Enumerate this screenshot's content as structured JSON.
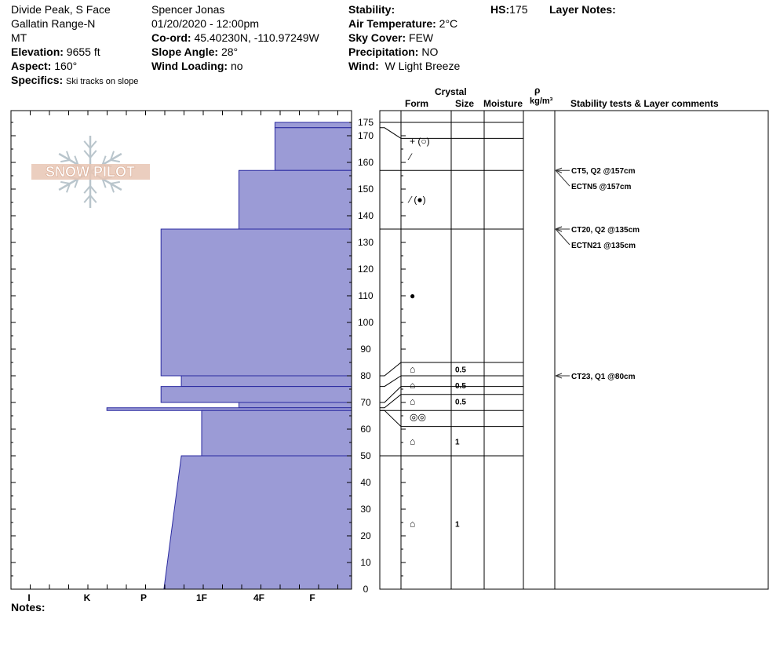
{
  "header": {
    "location": "Divide Peak, S Face",
    "range": "Gallatin Range-N",
    "state": "MT",
    "elevation_label": "Elevation:",
    "elevation_value": "9655 ft",
    "aspect_label": "Aspect:",
    "aspect_value": "160°",
    "specifics_label": "Specifics:",
    "specifics_value": "Ski tracks on slope",
    "observer": "Spencer Jonas",
    "datetime": "01/20/2020 - 12:00pm",
    "coord_label": "Co-ord:",
    "coord_value": "45.40230N, -110.97249W",
    "slope_label": "Slope Angle:",
    "slope_value": "28°",
    "wind_loading_label": "Wind Loading:",
    "wind_loading_value": "no",
    "stability_label": "Stability:",
    "air_temp_label": "Air Temperature:",
    "air_temp_value": "2°C",
    "sky_label": "Sky Cover:",
    "sky_value": "FEW",
    "precip_label": "Precipitation:",
    "precip_value": "NO",
    "wind_label": "Wind:",
    "wind_value": "W Light Breeze",
    "hs_label": "HS:",
    "hs_value": "175",
    "layer_notes_label": "Layer Notes:"
  },
  "logo": {
    "text": "SNOW PILOT"
  },
  "columns": {
    "crystal": "Crystal",
    "form": "Form",
    "size": "Size",
    "moisture": "Moisture",
    "rho": "ρ",
    "density_unit": "kg/m³",
    "stability": "Stability tests & Layer comments"
  },
  "notes_label": "Notes:",
  "chart_data": {
    "type": "bar",
    "title": "",
    "ylabel": "",
    "ylim": [
      0,
      180
    ],
    "hardness_scale": [
      "I",
      "K",
      "P",
      "1F",
      "4F",
      "F"
    ],
    "y_ticks": [
      0,
      10,
      20,
      30,
      40,
      50,
      60,
      70,
      80,
      90,
      100,
      110,
      120,
      130,
      140,
      150,
      160,
      170,
      175
    ],
    "hardness_layers": [
      {
        "bottom": 173,
        "top": 175,
        "hardness_top": 0.7,
        "hardness_bottom": 0.7
      },
      {
        "bottom": 157,
        "top": 173,
        "hardness_top": 0.7,
        "hardness_bottom": 0.7
      },
      {
        "bottom": 135,
        "top": 157,
        "hardness_top": 1.35,
        "hardness_bottom": 1.35
      },
      {
        "bottom": 80,
        "top": 135,
        "hardness_top": 2.7,
        "hardness_bottom": 2.7
      },
      {
        "bottom": 76,
        "top": 80,
        "hardness_top": 2.35,
        "hardness_bottom": 2.35
      },
      {
        "bottom": 70,
        "top": 76,
        "hardness_top": 2.7,
        "hardness_bottom": 2.7
      },
      {
        "bottom": 68,
        "top": 70,
        "hardness_top": 1.35,
        "hardness_bottom": 1.35
      },
      {
        "bottom": 67,
        "top": 68,
        "hardness_top": 3.65,
        "hardness_bottom": 3.65
      },
      {
        "bottom": 50,
        "top": 67,
        "hardness_top": 2.0,
        "hardness_bottom": 2.0
      },
      {
        "bottom": 0,
        "top": 50,
        "hardness_top": 2.35,
        "hardness_bottom": 2.65
      }
    ],
    "layer_boundaries": [
      175,
      169,
      157,
      135,
      85,
      80,
      76,
      73,
      67,
      61,
      50
    ],
    "layers": [
      {
        "label_y": 168,
        "form": "+ (○)",
        "size": ""
      },
      {
        "label_y": 162,
        "form": "⁄",
        "size": ""
      },
      {
        "label_y": 146,
        "form": "⁄ (●)",
        "size": ""
      },
      {
        "label_y": 110,
        "form": "●",
        "size": ""
      },
      {
        "label_y": 82.5,
        "form": "⌂",
        "size": "0.5"
      },
      {
        "label_y": 76.5,
        "form": "⌂",
        "size": "0.5"
      },
      {
        "label_y": 70.5,
        "form": "⌂",
        "size": "0.5"
      },
      {
        "label_y": 64.5,
        "form": "◎◎",
        "size": ""
      },
      {
        "label_y": 55.5,
        "form": "⌂",
        "size": "1"
      },
      {
        "label_y": 24.5,
        "form": "⌂",
        "size": "1"
      }
    ],
    "stability_tests": [
      {
        "depth": 157,
        "text": "CT5, Q2 @157cm"
      },
      {
        "depth": 157,
        "text": "ECTN5 @157cm"
      },
      {
        "depth": 135,
        "text": "CT20, Q2 @135cm"
      },
      {
        "depth": 135,
        "text": "ECTN21 @135cm"
      },
      {
        "depth": 80,
        "text": "CT23, Q1 @80cm"
      }
    ]
  }
}
